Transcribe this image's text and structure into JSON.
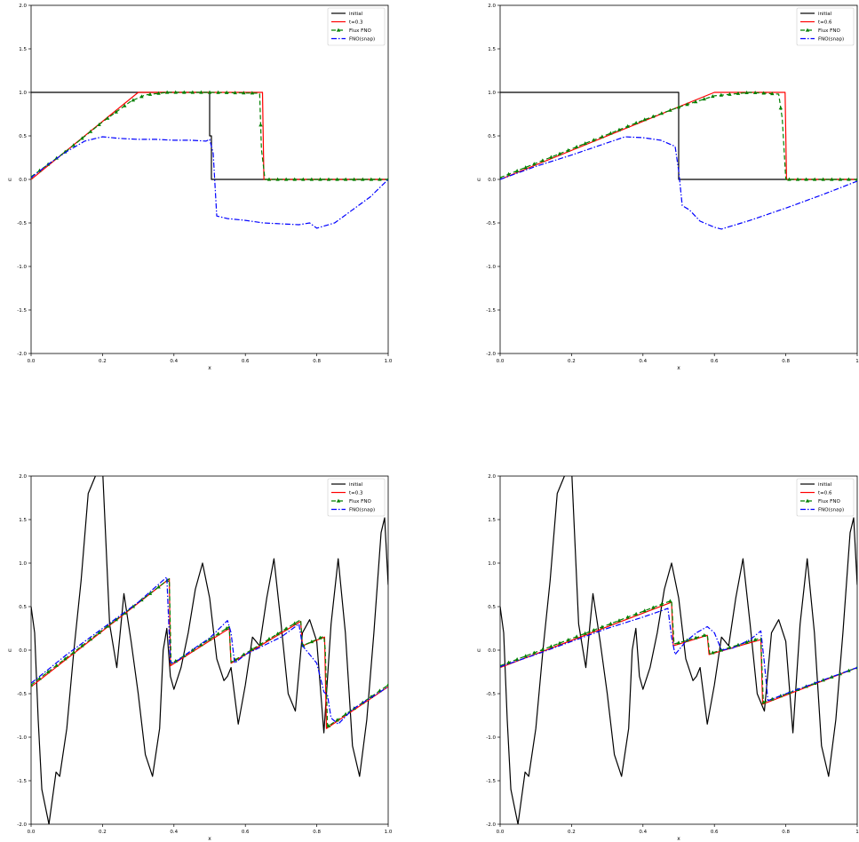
{
  "chart_data": [
    {
      "type": "line",
      "xlabel": "x",
      "ylabel": "u",
      "xlim": [
        0,
        1
      ],
      "ylim": [
        -2,
        2
      ],
      "xticks": [
        0,
        0.2,
        0.4,
        0.6,
        0.8,
        1.0
      ],
      "xtick_labels": [
        "0.0",
        "0.2",
        "0.4",
        "0.6",
        "0.8",
        "1.0"
      ],
      "yticks": [
        -2,
        -1.5,
        -1,
        -0.5,
        0,
        0.5,
        1,
        1.5,
        2
      ],
      "ytick_labels": [
        "-2.0",
        "-1.5",
        "-1.0",
        "-0.5",
        "0.0",
        "0.5",
        "1.0",
        "1.5",
        "2.0"
      ],
      "legend": "top-right",
      "series": [
        {
          "name": "initial",
          "color": "#000000",
          "style": "solid",
          "marker": "",
          "x": [
            0,
            0.5,
            0.5,
            0.505,
            0.505,
            1
          ],
          "y": [
            1,
            1,
            0.5,
            0.5,
            0,
            0
          ]
        },
        {
          "name": "t=0.3",
          "color": "#ff0000",
          "style": "solid",
          "marker": "",
          "x": [
            0,
            0.3,
            0.648,
            0.652,
            1
          ],
          "y": [
            0,
            1,
            1,
            0,
            0
          ]
        },
        {
          "name": "Flux FNO",
          "color": "#008000",
          "style": "dashed",
          "marker": "triangle",
          "x": [
            0,
            0.1,
            0.2,
            0.28,
            0.32,
            0.38,
            0.5,
            0.64,
            0.645,
            0.655,
            1
          ],
          "y": [
            0.03,
            0.33,
            0.66,
            0.9,
            0.97,
            1.0,
            1.0,
            0.99,
            0.35,
            0,
            0
          ]
        },
        {
          "name": "FNO(snap)",
          "color": "#0000ff",
          "style": "dashdot",
          "marker": "",
          "x": [
            0,
            0.05,
            0.1,
            0.15,
            0.2,
            0.25,
            0.3,
            0.35,
            0.4,
            0.45,
            0.49,
            0.5,
            0.51,
            0.52,
            0.55,
            0.6,
            0.65,
            0.7,
            0.75,
            0.78,
            0.8,
            0.85,
            0.9,
            0.95,
            1.0
          ],
          "y": [
            0.02,
            0.18,
            0.32,
            0.44,
            0.49,
            0.47,
            0.46,
            0.46,
            0.45,
            0.45,
            0.44,
            0.46,
            0.3,
            -0.42,
            -0.45,
            -0.47,
            -0.5,
            -0.51,
            -0.52,
            -0.5,
            -0.56,
            -0.5,
            -0.35,
            -0.2,
            0.0
          ]
        }
      ]
    },
    {
      "type": "line",
      "xlabel": "x",
      "ylabel": "u",
      "xlim": [
        0,
        1
      ],
      "ylim": [
        -2,
        2
      ],
      "xticks": [
        0,
        0.2,
        0.4,
        0.6,
        0.8,
        1.0
      ],
      "xtick_labels": [
        "0.0",
        "0.2",
        "0.4",
        "0.6",
        "0.8",
        "1"
      ],
      "yticks": [
        -2,
        -1.5,
        -1,
        -0.5,
        0,
        0.5,
        1,
        1.5,
        2
      ],
      "ytick_labels": [
        "-2.0",
        "-1.5",
        "-1.0",
        "-0.5",
        "0.0",
        "0.5",
        "1.0",
        "1.5",
        "2.0"
      ],
      "legend": "top-right",
      "series": [
        {
          "name": "initial",
          "color": "#000000",
          "style": "solid",
          "marker": "",
          "x": [
            0,
            0.5,
            0.5,
            1
          ],
          "y": [
            1,
            1,
            0,
            0
          ]
        },
        {
          "name": "t=0.6",
          "color": "#ff0000",
          "style": "solid",
          "marker": "",
          "x": [
            0,
            0.6,
            0.798,
            0.802,
            1
          ],
          "y": [
            0,
            1,
            1,
            0,
            0
          ]
        },
        {
          "name": "Flux FNO",
          "color": "#008000",
          "style": "dashed",
          "marker": "triangle",
          "x": [
            0,
            0.2,
            0.4,
            0.5,
            0.6,
            0.7,
            0.78,
            0.79,
            0.8,
            1
          ],
          "y": [
            0.02,
            0.35,
            0.68,
            0.83,
            0.96,
            1.0,
            0.98,
            0.7,
            0,
            0
          ]
        },
        {
          "name": "FNO(snap)",
          "color": "#0000ff",
          "style": "dashdot",
          "marker": "",
          "x": [
            0,
            0.1,
            0.2,
            0.3,
            0.35,
            0.4,
            0.45,
            0.49,
            0.5,
            0.51,
            0.53,
            0.56,
            0.6,
            0.62,
            0.7,
            0.8,
            0.9,
            1.0
          ],
          "y": [
            0.0,
            0.15,
            0.28,
            0.42,
            0.49,
            0.48,
            0.45,
            0.38,
            0.1,
            -0.3,
            -0.35,
            -0.48,
            -0.55,
            -0.57,
            -0.47,
            -0.33,
            -0.18,
            -0.02
          ]
        }
      ]
    },
    {
      "type": "line",
      "xlabel": "x",
      "ylabel": "u",
      "xlim": [
        0,
        1
      ],
      "ylim": [
        -2,
        2
      ],
      "xticks": [
        0,
        0.2,
        0.4,
        0.6,
        0.8,
        1.0
      ],
      "xtick_labels": [
        "0.0",
        "0.2",
        "0.4",
        "0.6",
        "0.8",
        "1.0"
      ],
      "yticks": [
        -2,
        -1.5,
        -1,
        -0.5,
        0,
        0.5,
        1,
        1.5,
        2
      ],
      "ytick_labels": [
        "-2.0",
        "-1.5",
        "-1.0",
        "-0.5",
        "0.0",
        "0.5",
        "1.0",
        "1.5",
        "2.0"
      ],
      "legend": "top-right",
      "series": [
        {
          "name": "initial",
          "color": "#000000",
          "style": "solid",
          "marker": "",
          "x": [
            0,
            0.01,
            0.02,
            0.03,
            0.05,
            0.06,
            0.07,
            0.08,
            0.1,
            0.12,
            0.14,
            0.16,
            0.18,
            0.19,
            0.2,
            0.21,
            0.22,
            0.24,
            0.26,
            0.28,
            0.3,
            0.32,
            0.34,
            0.36,
            0.37,
            0.38,
            0.39,
            0.4,
            0.42,
            0.44,
            0.46,
            0.48,
            0.5,
            0.52,
            0.54,
            0.55,
            0.56,
            0.58,
            0.6,
            0.62,
            0.64,
            0.66,
            0.68,
            0.7,
            0.72,
            0.74,
            0.76,
            0.78,
            0.8,
            0.82,
            0.84,
            0.86,
            0.88,
            0.9,
            0.92,
            0.94,
            0.96,
            0.98,
            0.99,
            1.0
          ],
          "y": [
            0.5,
            0.2,
            -0.8,
            -1.6,
            -2.0,
            -1.7,
            -1.4,
            -1.45,
            -0.9,
            0.0,
            0.8,
            1.8,
            2.0,
            2.3,
            2.1,
            1.2,
            0.3,
            -0.2,
            0.65,
            0.1,
            -0.5,
            -1.2,
            -1.45,
            -0.9,
            0.0,
            0.25,
            -0.3,
            -0.45,
            -0.2,
            0.2,
            0.7,
            1.0,
            0.6,
            -0.1,
            -0.35,
            -0.3,
            -0.2,
            -0.85,
            -0.4,
            0.15,
            0.05,
            0.6,
            1.05,
            0.3,
            -0.5,
            -0.7,
            0.2,
            0.35,
            0.1,
            -0.95,
            0.3,
            1.05,
            0.2,
            -1.1,
            -1.45,
            -0.8,
            0.2,
            1.35,
            1.52,
            0.75
          ]
        },
        {
          "name": "t=0.3",
          "color": "#ff0000",
          "style": "solid",
          "marker": "",
          "x": [
            0,
            0.387,
            0.39,
            0.555,
            0.56,
            0.755,
            0.76,
            0.822,
            0.827,
            1
          ],
          "y": [
            -0.42,
            0.82,
            -0.18,
            0.25,
            -0.15,
            0.33,
            0.05,
            0.15,
            -0.9,
            -0.42
          ]
        },
        {
          "name": "Flux FNO",
          "color": "#008000",
          "style": "dashed",
          "marker": "triangle",
          "x": [
            0,
            0.387,
            0.392,
            0.555,
            0.56,
            0.755,
            0.76,
            0.82,
            0.824,
            0.83,
            1
          ],
          "y": [
            -0.4,
            0.82,
            -0.16,
            0.27,
            -0.14,
            0.35,
            0.05,
            0.16,
            0.0,
            -0.88,
            -0.4
          ]
        },
        {
          "name": "FNO(snap)",
          "color": "#0000ff",
          "style": "dashdot",
          "marker": "",
          "x": [
            0,
            0.1,
            0.2,
            0.3,
            0.38,
            0.39,
            0.4,
            0.45,
            0.5,
            0.55,
            0.56,
            0.57,
            0.6,
            0.65,
            0.7,
            0.75,
            0.76,
            0.78,
            0.8,
            0.82,
            0.83,
            0.84,
            0.86,
            0.9,
            0.95,
            1.0
          ],
          "y": [
            -0.38,
            -0.05,
            0.25,
            0.55,
            0.84,
            -0.14,
            -0.15,
            0.0,
            0.14,
            0.34,
            0.2,
            -0.15,
            -0.05,
            0.05,
            0.15,
            0.3,
            0.05,
            -0.05,
            -0.15,
            -0.48,
            -0.52,
            -0.78,
            -0.85,
            -0.68,
            -0.55,
            -0.42
          ]
        }
      ]
    },
    {
      "type": "line",
      "xlabel": "x",
      "ylabel": "u",
      "xlim": [
        0,
        1
      ],
      "ylim": [
        -2,
        2
      ],
      "xticks": [
        0,
        0.2,
        0.4,
        0.6,
        0.8,
        1.0
      ],
      "xtick_labels": [
        "0.0",
        "0.2",
        "0.4",
        "0.6",
        "0.8",
        "1"
      ],
      "yticks": [
        -2,
        -1.5,
        -1,
        -0.5,
        0,
        0.5,
        1,
        1.5,
        2
      ],
      "ytick_labels": [
        "-2.0",
        "-1.5",
        "-1.0",
        "-0.5",
        "0.0",
        "0.5",
        "1.0",
        "1.5",
        "2.0"
      ],
      "legend": "top-right",
      "series": [
        {
          "name": "initial",
          "color": "#000000",
          "style": "solid",
          "marker": "",
          "x": [
            0,
            0.01,
            0.02,
            0.03,
            0.05,
            0.06,
            0.07,
            0.08,
            0.1,
            0.12,
            0.14,
            0.16,
            0.18,
            0.19,
            0.2,
            0.21,
            0.22,
            0.24,
            0.26,
            0.28,
            0.3,
            0.32,
            0.34,
            0.36,
            0.37,
            0.38,
            0.39,
            0.4,
            0.42,
            0.44,
            0.46,
            0.48,
            0.5,
            0.52,
            0.54,
            0.55,
            0.56,
            0.58,
            0.6,
            0.62,
            0.64,
            0.66,
            0.68,
            0.7,
            0.72,
            0.74,
            0.76,
            0.78,
            0.8,
            0.82,
            0.84,
            0.86,
            0.88,
            0.9,
            0.92,
            0.94,
            0.96,
            0.98,
            0.99,
            1.0
          ],
          "y": [
            0.5,
            0.2,
            -0.8,
            -1.6,
            -2.0,
            -1.7,
            -1.4,
            -1.45,
            -0.9,
            0.0,
            0.8,
            1.8,
            2.0,
            2.3,
            2.1,
            1.2,
            0.3,
            -0.2,
            0.65,
            0.1,
            -0.5,
            -1.2,
            -1.45,
            -0.9,
            0.0,
            0.25,
            -0.3,
            -0.45,
            -0.2,
            0.2,
            0.7,
            1.0,
            0.6,
            -0.1,
            -0.35,
            -0.3,
            -0.2,
            -0.85,
            -0.4,
            0.15,
            0.05,
            0.6,
            1.05,
            0.3,
            -0.5,
            -0.7,
            0.2,
            0.35,
            0.1,
            -0.95,
            0.3,
            1.05,
            0.2,
            -1.1,
            -1.45,
            -0.8,
            0.2,
            1.35,
            1.52,
            0.75
          ]
        },
        {
          "name": "t=0.6",
          "color": "#ff0000",
          "style": "solid",
          "marker": "",
          "x": [
            0,
            0.48,
            0.485,
            0.58,
            0.585,
            0.73,
            0.735,
            1
          ],
          "y": [
            -0.2,
            0.55,
            0.05,
            0.17,
            -0.05,
            0.12,
            -0.62,
            -0.2
          ]
        },
        {
          "name": "Flux FNO",
          "color": "#008000",
          "style": "dashed",
          "marker": "triangle",
          "x": [
            0,
            0.48,
            0.487,
            0.58,
            0.587,
            0.73,
            0.737,
            1
          ],
          "y": [
            -0.18,
            0.57,
            0.07,
            0.18,
            -0.04,
            0.14,
            -0.6,
            -0.2
          ]
        },
        {
          "name": "FNO(snap)",
          "color": "#0000ff",
          "style": "dashdot",
          "marker": "",
          "x": [
            0,
            0.1,
            0.2,
            0.3,
            0.4,
            0.47,
            0.48,
            0.49,
            0.52,
            0.55,
            0.58,
            0.6,
            0.62,
            0.65,
            0.7,
            0.73,
            0.74,
            0.75,
            0.8,
            0.9,
            1.0
          ],
          "y": [
            -0.19,
            -0.05,
            0.1,
            0.25,
            0.38,
            0.48,
            0.15,
            -0.05,
            0.1,
            0.2,
            0.27,
            0.2,
            0.0,
            0.02,
            0.12,
            0.22,
            -0.15,
            -0.58,
            -0.5,
            -0.35,
            -0.2
          ]
        }
      ]
    }
  ]
}
